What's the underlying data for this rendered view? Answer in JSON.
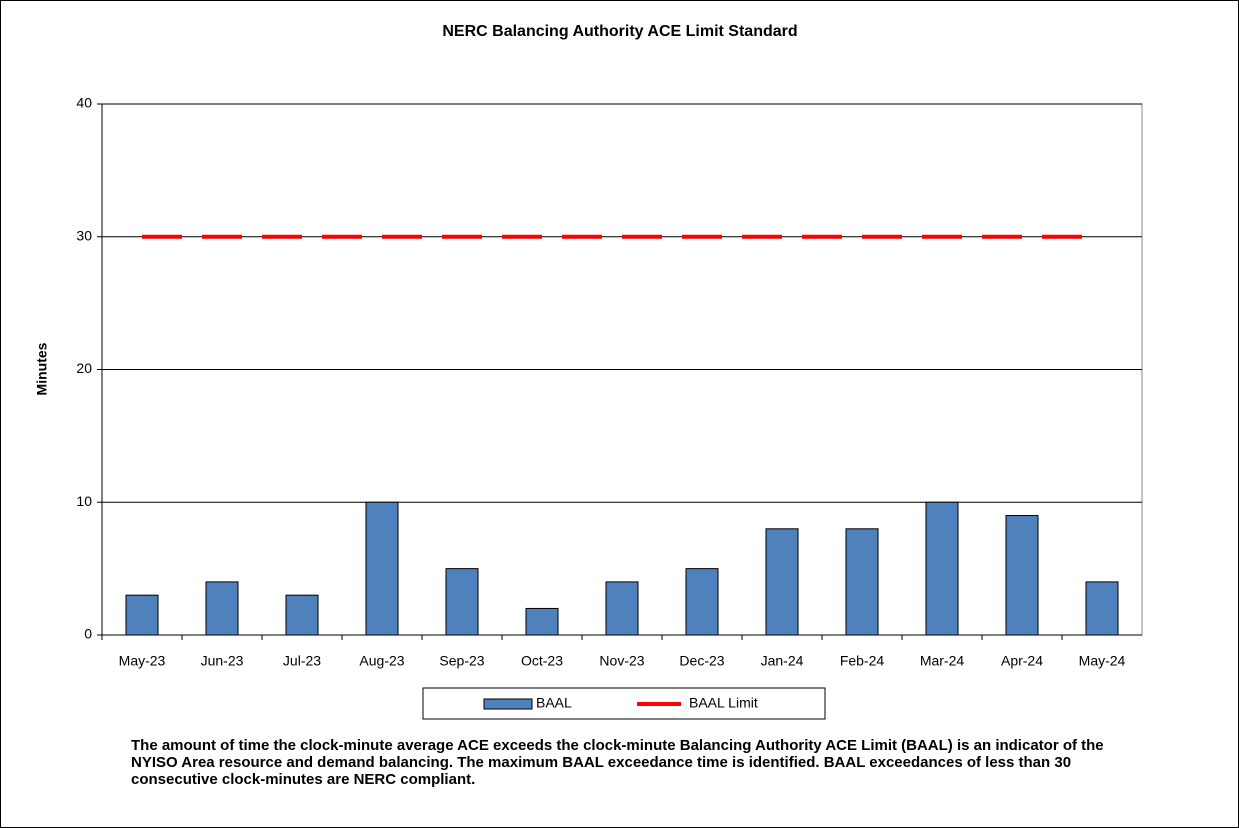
{
  "chart_data": {
    "type": "bar",
    "title": "NERC Balancing Authority ACE Limit Standard",
    "y_label": "Minutes",
    "categories": [
      "May-23",
      "Jun-23",
      "Jul-23",
      "Aug-23",
      "Sep-23",
      "Oct-23",
      "Nov-23",
      "Dec-23",
      "Jan-24",
      "Feb-24",
      "Mar-24",
      "Apr-24",
      "May-24"
    ],
    "series": [
      {
        "name": "BAAL",
        "type": "bar",
        "color": "#4f81bd",
        "values": [
          3,
          4,
          3,
          10,
          5,
          2,
          4,
          5,
          8,
          8,
          10,
          9,
          4
        ]
      },
      {
        "name": "BAAL Limit",
        "type": "line",
        "color": "#ff0000",
        "values": [
          30,
          30,
          30,
          30,
          30,
          30,
          30,
          30,
          30,
          30,
          30,
          30,
          30
        ]
      }
    ],
    "ylim": [
      0,
      40
    ],
    "yticks": [
      0,
      10,
      20,
      30,
      40
    ],
    "grid": true,
    "legend": "bottom",
    "footnote": "The  amount of time the clock-minute average ACE exceeds the clock-minute Balancing Authority ACE Limit (BAAL)  is an indicator of the NYISO Area resource and demand balancing. The maximum BAAL exceedance time is identified. BAAL exceedances of less than 30 consecutive clock-minutes are NERC compliant."
  }
}
